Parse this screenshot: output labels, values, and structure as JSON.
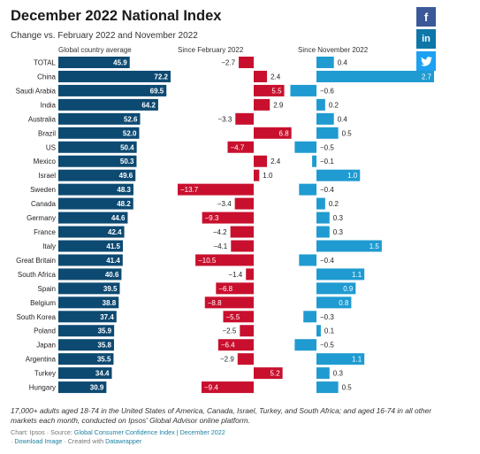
{
  "share": {
    "facebook_label": "f",
    "linkedin_label": "in",
    "twitter_label": "t",
    "colors": {
      "facebook": "#3b5998",
      "linkedin": "#0e76a8",
      "twitter": "#1da1f2"
    }
  },
  "chart_data": {
    "type": "bar",
    "title": "December 2022 National Index",
    "subtitle": "Change vs. February 2022 and November 2022",
    "categories": [
      "TOTAL",
      "China",
      "Saudi Arabia",
      "India",
      "Australia",
      "Brazil",
      "US",
      "Mexico",
      "Israel",
      "Sweden",
      "Canada",
      "Germany",
      "France",
      "Italy",
      "Great Britain",
      "South Africa",
      "Spain",
      "Belgium",
      "South Korea",
      "Poland",
      "Japan",
      "Argentina",
      "Turkey",
      "Hungary"
    ],
    "series": [
      {
        "name": "Global country average",
        "color": "#0d4a72",
        "values": [
          45.9,
          72.2,
          69.5,
          64.2,
          52.6,
          52.0,
          50.4,
          50.3,
          49.6,
          48.3,
          48.2,
          44.6,
          42.4,
          41.5,
          41.4,
          40.6,
          39.5,
          38.8,
          37.4,
          35.9,
          35.8,
          35.5,
          34.4,
          30.9
        ],
        "labels": [
          "45.9",
          "72.2",
          "69.5",
          "64.2",
          "52.6",
          "52.0",
          "50.4",
          "50.3",
          "49.6",
          "48.3",
          "48.2",
          "44.6",
          "42.4",
          "41.5",
          "41.4",
          "40.6",
          "39.5",
          "38.8",
          "37.4",
          "35.9",
          "35.8",
          "35.5",
          "34.4",
          "30.9"
        ]
      },
      {
        "name": "Since February 2022",
        "color": "#c8102e",
        "values": [
          -2.7,
          2.4,
          5.5,
          2.9,
          -3.3,
          6.8,
          -4.7,
          2.4,
          1.0,
          -13.7,
          -3.4,
          -9.3,
          -4.2,
          -4.1,
          -10.5,
          -1.4,
          -6.8,
          -8.8,
          -5.5,
          -2.5,
          -6.4,
          -2.9,
          5.2,
          -9.4
        ],
        "labels": [
          "−2.7",
          "2.4",
          "5.5",
          "2.9",
          "−3.3",
          "6.8",
          "−4.7",
          "2.4",
          "1.0",
          "−13.7",
          "−3.4",
          "−9.3",
          "−4.2",
          "−4.1",
          "−10.5",
          "−1.4",
          "−6.8",
          "−8.8",
          "−5.5",
          "−2.5",
          "−6.4",
          "−2.9",
          "5.2",
          "−9.4"
        ]
      },
      {
        "name": "Since November 2022",
        "color": "#1f9bd1",
        "values": [
          0.4,
          2.7,
          -0.6,
          0.2,
          0.4,
          0.5,
          -0.5,
          -0.1,
          1.0,
          -0.4,
          0.2,
          0.3,
          0.3,
          1.5,
          -0.4,
          1.1,
          0.9,
          0.8,
          -0.3,
          0.1,
          -0.5,
          1.1,
          0.3,
          0.5
        ],
        "labels": [
          "0.4",
          "2.7",
          "−0.6",
          "0.2",
          "0.4",
          "0.5",
          "−0.5",
          "−0.1",
          "1.0",
          "−0.4",
          "0.2",
          "0.3",
          "0.3",
          "1.5",
          "−0.4",
          "1.1",
          "0.9",
          "0.8",
          "−0.3",
          "0.1",
          "−0.5",
          "1.1",
          "0.3",
          "0.5"
        ]
      }
    ],
    "notes": "17,000+ adults aged 18-74 in the United States of America, Canada, Israel, Turkey, and South Africa; and aged 16-74 in all other markets each month, conducted on Ipsos' Global Advisor online platform.",
    "source_prefix": "Chart: Ipsos · Source: ",
    "source_link": "Global Consumer Confidence Index | December 2022",
    "download_label": "Download Image",
    "created_with_prefix": " · Created with ",
    "created_with_link": "Datawrapper"
  }
}
